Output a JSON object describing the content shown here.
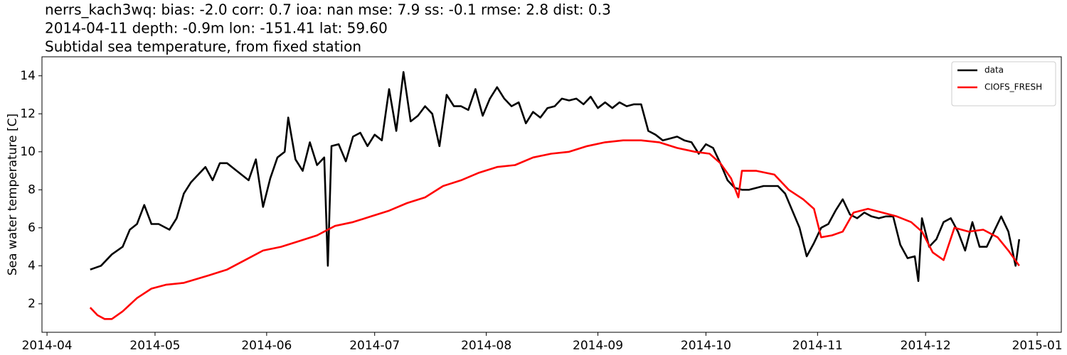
{
  "chart_data": {
    "type": "line",
    "title_lines": [
      "nerrs_kach3wq: bias: -2.0  corr: 0.7  ioa: nan  mse: 7.9  ss: -0.1  rmse: 2.8  dist: 0.3",
      "2014-04-11 depth: -0.9m lon: -151.41 lat: 59.60",
      "Subtidal sea temperature, from fixed station"
    ],
    "ylabel": "Sea water temperature [C]",
    "xlim": [
      -1.4,
      281.7
    ],
    "xticks": [
      {
        "value": 0,
        "label": "2014-04"
      },
      {
        "value": 30,
        "label": "2014-05"
      },
      {
        "value": 61,
        "label": "2014-06"
      },
      {
        "value": 91,
        "label": "2014-07"
      },
      {
        "value": 122,
        "label": "2014-08"
      },
      {
        "value": 153,
        "label": "2014-09"
      },
      {
        "value": 183,
        "label": "2014-10"
      },
      {
        "value": 214,
        "label": "2014-11"
      },
      {
        "value": 244,
        "label": "2014-12"
      },
      {
        "value": 275,
        "label": "2015-01"
      }
    ],
    "ylim": [
      0.5,
      15.0
    ],
    "yticks": [
      2,
      4,
      6,
      8,
      10,
      12,
      14
    ],
    "legend": "upper right",
    "series": [
      {
        "name": "data",
        "color": "#000000",
        "x": [
          12,
          15,
          18,
          21,
          23,
          25,
          27,
          29,
          31,
          34,
          36,
          38,
          40,
          42,
          44,
          46,
          48,
          50,
          52,
          54,
          56,
          58,
          60,
          62,
          64,
          66,
          67,
          69,
          71,
          73,
          75,
          77,
          78,
          79,
          81,
          83,
          85,
          87,
          89,
          91,
          93,
          95,
          97,
          99,
          101,
          103,
          105,
          107,
          109,
          111,
          113,
          115,
          117,
          119,
          121,
          123,
          125,
          127,
          129,
          131,
          133,
          135,
          137,
          139,
          141,
          143,
          145,
          147,
          149,
          151,
          153,
          155,
          157,
          159,
          161,
          163,
          165,
          167,
          169,
          171,
          173,
          175,
          177,
          179,
          181,
          183,
          185,
          187,
          189,
          191,
          193,
          195,
          197,
          199,
          201,
          203,
          205,
          207,
          209,
          211,
          213,
          215,
          217,
          219,
          221,
          223,
          225,
          227,
          229,
          231,
          233,
          235,
          237,
          239,
          241,
          242,
          243,
          245,
          247,
          249,
          251,
          253,
          255,
          257,
          259,
          261,
          263,
          265,
          267,
          269,
          270
        ],
        "values": [
          3.8,
          4.0,
          4.6,
          5.0,
          5.9,
          6.2,
          7.2,
          6.2,
          6.2,
          5.9,
          6.5,
          7.8,
          8.4,
          8.8,
          9.2,
          8.5,
          9.4,
          9.4,
          9.1,
          8.8,
          8.5,
          9.6,
          7.1,
          8.6,
          9.7,
          10.0,
          11.8,
          9.6,
          9.0,
          10.5,
          9.3,
          9.7,
          4.0,
          10.3,
          10.4,
          9.5,
          10.8,
          11.0,
          10.3,
          10.9,
          10.6,
          13.3,
          11.1,
          14.2,
          11.6,
          11.9,
          12.4,
          12.0,
          10.3,
          13.0,
          12.4,
          12.4,
          12.2,
          13.3,
          11.9,
          12.8,
          13.4,
          12.8,
          12.4,
          12.6,
          11.5,
          12.1,
          11.8,
          12.3,
          12.4,
          12.8,
          12.7,
          12.8,
          12.5,
          12.9,
          12.3,
          12.6,
          12.3,
          12.6,
          12.4,
          12.5,
          12.5,
          11.1,
          10.9,
          10.6,
          10.7,
          10.8,
          10.6,
          10.5,
          9.9,
          10.4,
          10.2,
          9.4,
          8.5,
          8.1,
          8.0,
          8.0,
          8.1,
          8.2,
          8.2,
          8.2,
          7.8,
          6.9,
          6.0,
          4.5,
          5.2,
          6.0,
          6.2,
          6.9,
          7.5,
          6.7,
          6.5,
          6.8,
          6.6,
          6.5,
          6.6,
          6.6,
          5.1,
          4.4,
          4.5,
          3.2,
          6.5,
          5.0,
          5.4,
          6.3,
          6.5,
          5.8,
          4.8,
          6.3,
          5.0,
          5.0,
          5.8,
          6.6,
          5.8,
          4.0,
          5.4
        ]
      },
      {
        "name": "CIOFS_FRESH",
        "color": "#ff0000",
        "x": [
          12,
          14,
          16,
          18,
          21,
          25,
          29,
          33,
          38,
          45,
          50,
          55,
          60,
          65,
          70,
          75,
          80,
          85,
          90,
          95,
          100,
          105,
          110,
          115,
          120,
          125,
          130,
          135,
          140,
          145,
          150,
          155,
          160,
          165,
          170,
          175,
          180,
          184,
          187,
          190,
          192,
          193,
          197,
          202,
          206,
          210,
          213,
          215,
          218,
          221,
          224,
          228,
          232,
          236,
          240,
          243,
          246,
          249,
          252,
          256,
          260,
          264,
          267,
          270
        ],
        "values": [
          1.8,
          1.4,
          1.2,
          1.2,
          1.6,
          2.3,
          2.8,
          3.0,
          3.1,
          3.5,
          3.8,
          4.3,
          4.8,
          5.0,
          5.3,
          5.6,
          6.1,
          6.3,
          6.6,
          6.9,
          7.3,
          7.6,
          8.2,
          8.5,
          8.9,
          9.2,
          9.3,
          9.7,
          9.9,
          10.0,
          10.3,
          10.5,
          10.6,
          10.6,
          10.5,
          10.2,
          10.0,
          9.9,
          9.4,
          8.6,
          7.6,
          9.0,
          9.0,
          8.8,
          8.0,
          7.5,
          7.0,
          5.5,
          5.6,
          5.8,
          6.8,
          7.0,
          6.8,
          6.6,
          6.3,
          5.8,
          4.7,
          4.3,
          6.0,
          5.8,
          5.9,
          5.5,
          4.8,
          4.0
        ]
      }
    ]
  }
}
